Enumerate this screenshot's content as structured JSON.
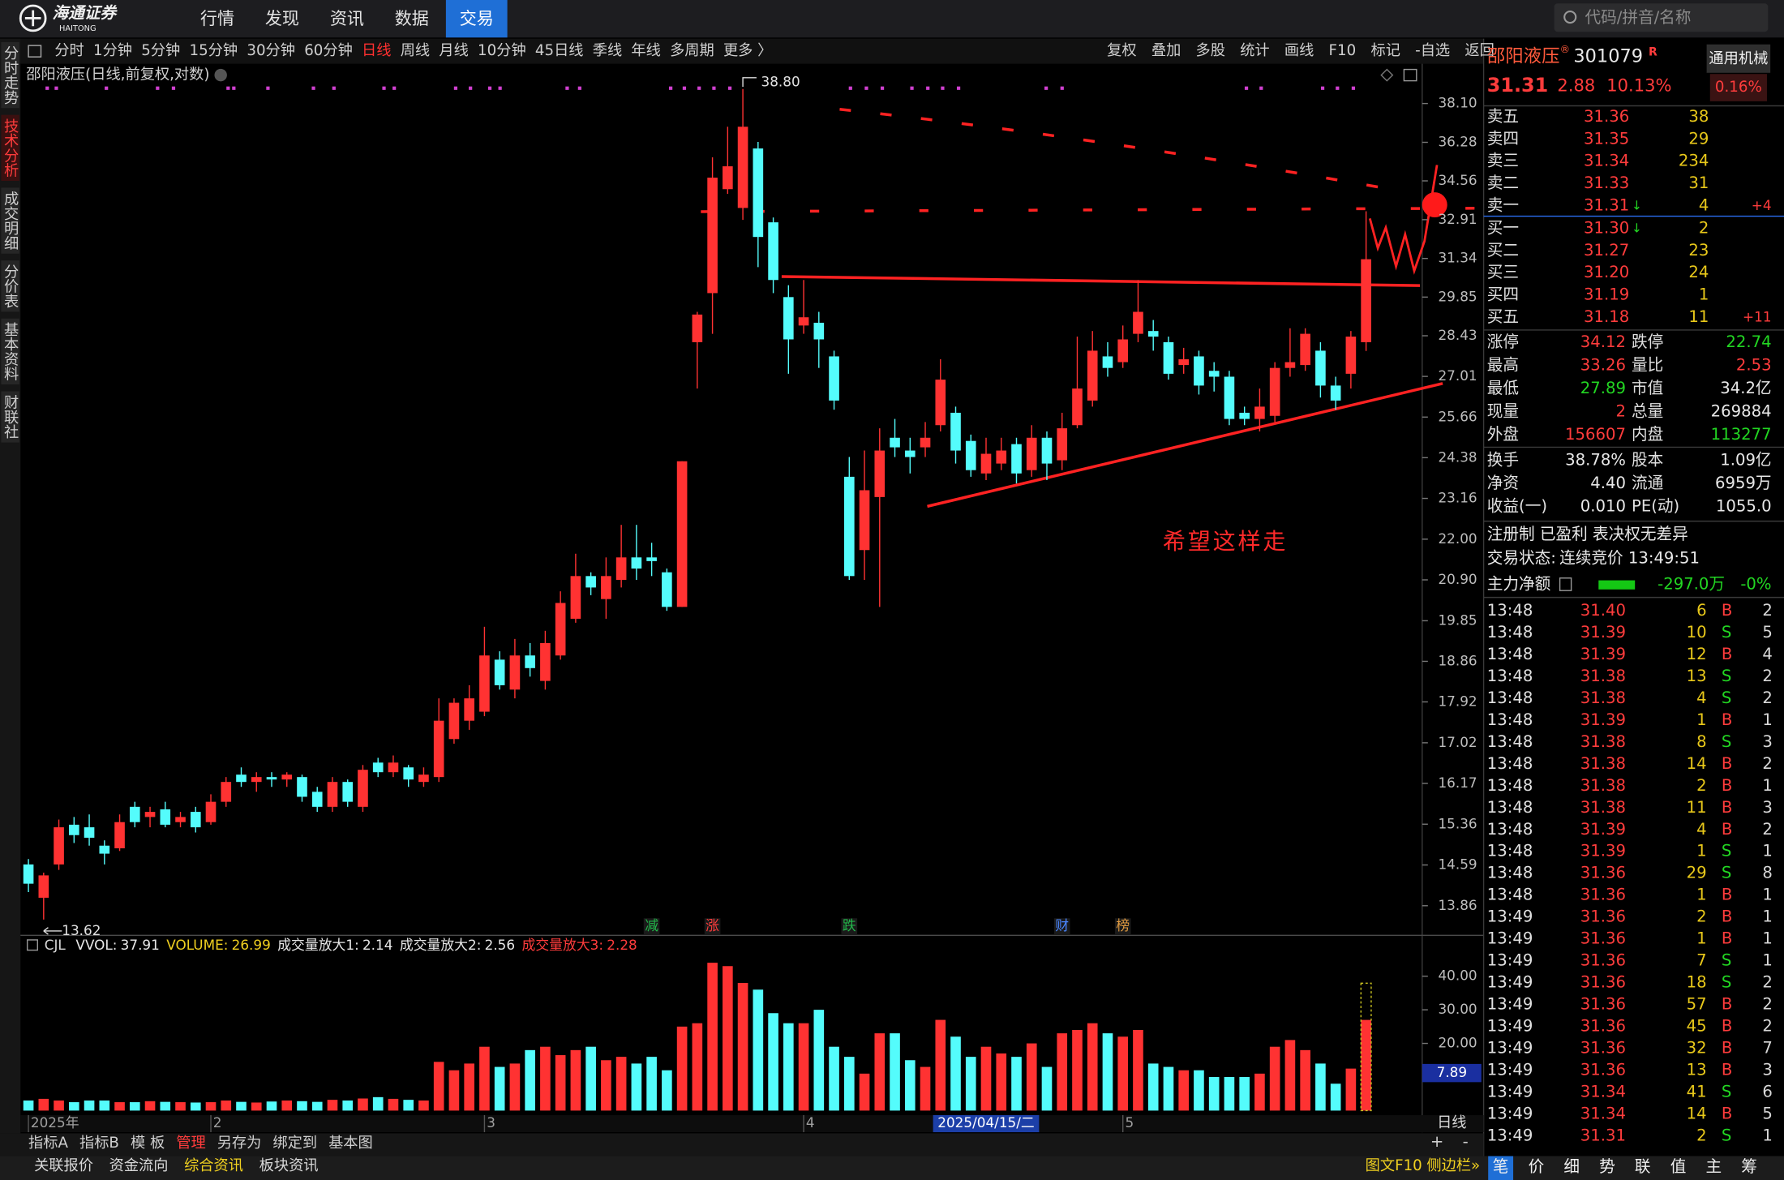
{
  "menu": {
    "logo": "海通证券",
    "logo_en": "HAITONG",
    "items": [
      "行情",
      "发现",
      "资讯",
      "数据",
      "交易"
    ],
    "active": 4,
    "search": "代码/拼音/名称"
  },
  "side_tabs": {
    "items": [
      "分时走势",
      "技术分析",
      "成交明细",
      "分价表",
      "基本资料",
      "财联社"
    ],
    "active": 1
  },
  "periods": {
    "items": [
      "分时",
      "1分钟",
      "5分钟",
      "15分钟",
      "30分钟",
      "60分钟",
      "日线",
      "周线",
      "月线",
      "10分钟",
      "45日线",
      "季线",
      "年线",
      "多周期",
      "更多 〉"
    ],
    "active": 6
  },
  "tools": [
    "复权",
    "叠加",
    "多股",
    "统计",
    "画线",
    "F10",
    "标记",
    "-自选",
    "返回"
  ],
  "chart_data": [
    {
      "type": "candlestick",
      "title": "邵阳液压(日线,前复权,对数)",
      "log_scale": true,
      "up_color": "#ff3232",
      "down_color": "#54fcfc",
      "ylim": [
        13.39,
        39.15
      ],
      "yticks": [
        {
          "value": 38.1,
          "label": "38.10"
        },
        36.28,
        34.56,
        32.91,
        31.34,
        29.85,
        28.43,
        27.01,
        25.66,
        24.38,
        23.16,
        {
          "value": 22,
          "label": "22.00"
        },
        {
          "value": 20.9,
          "label": "20.90"
        },
        19.85,
        18.86,
        17.92,
        17.02,
        16.17,
        15.36,
        14.59,
        13.86
      ],
      "categories": [
        "2025年",
        null,
        null,
        null,
        null,
        null,
        null,
        null,
        null,
        null,
        null,
        null,
        "2",
        null,
        null,
        null,
        null,
        null,
        null,
        null,
        null,
        null,
        null,
        null,
        null,
        null,
        null,
        null,
        null,
        null,
        "3",
        null,
        null,
        null,
        null,
        null,
        null,
        null,
        null,
        null,
        null,
        null,
        null,
        null,
        null,
        null,
        null,
        null,
        null,
        null,
        null,
        "4",
        null,
        null,
        null,
        null,
        null,
        null,
        null,
        null,
        null,
        null,
        null,
        null,
        null,
        null,
        null,
        null,
        null,
        null,
        null,
        null,
        "5",
        null,
        null,
        null,
        null,
        null,
        null,
        null,
        null,
        null,
        null,
        null,
        null,
        null,
        null,
        null,
        null
      ],
      "open": [
        14.6,
        14.0,
        14.6,
        15.35,
        15.3,
        14.95,
        14.9,
        15.7,
        15.5,
        15.65,
        15.4,
        15.6,
        15.4,
        15.8,
        16.35,
        16.2,
        16.3,
        16.25,
        16.3,
        16.0,
        15.7,
        16.2,
        15.7,
        16.6,
        16.4,
        16.5,
        16.2,
        16.3,
        17.1,
        17.5,
        17.7,
        18.9,
        18.2,
        19.0,
        18.4,
        19.0,
        19.9,
        21.0,
        20.4,
        20.9,
        21.5,
        21.5,
        21.1,
        20.2,
        28.2,
        30.0,
        34.2,
        33.4,
        36.0,
        32.8,
        29.85,
        28.8,
        28.9,
        27.7,
        23.8,
        21.7,
        23.2,
        25.0,
        24.6,
        24.7,
        25.4,
        25.8,
        24.9,
        23.9,
        24.2,
        24.8,
        24.0,
        25.0,
        24.3,
        25.4,
        26.2,
        27.7,
        27.5,
        28.5,
        28.6,
        28.2,
        27.4,
        27.7,
        27.2,
        27.0,
        25.8,
        25.6,
        25.7,
        27.3,
        27.4,
        27.9,
        26.7,
        27.1,
        28.2
      ],
      "high": [
        14.7,
        14.45,
        15.45,
        15.5,
        15.55,
        15.05,
        15.55,
        15.8,
        15.7,
        15.8,
        15.6,
        15.7,
        15.95,
        16.3,
        16.5,
        16.4,
        16.4,
        16.4,
        16.35,
        16.1,
        16.3,
        16.25,
        16.55,
        16.7,
        16.75,
        16.55,
        16.5,
        18.0,
        18.0,
        18.3,
        19.7,
        19.1,
        19.4,
        19.3,
        19.6,
        20.6,
        21.6,
        21.1,
        21.5,
        22.4,
        22.4,
        21.9,
        21.2,
        24.27,
        29.3,
        35.6,
        37.0,
        38.8,
        36.3,
        33.0,
        30.3,
        30.5,
        29.3,
        27.9,
        24.4,
        24.6,
        25.3,
        25.6,
        25.0,
        25.5,
        27.6,
        26.0,
        25.1,
        25.0,
        25.0,
        25.0,
        25.4,
        25.2,
        25.8,
        28.4,
        28.6,
        28.2,
        28.8,
        30.5,
        29.0,
        28.4,
        28.0,
        27.9,
        27.5,
        27.2,
        26.0,
        26.6,
        27.5,
        28.7,
        28.7,
        28.2,
        27.0,
        28.6,
        33.26
      ],
      "low": [
        14.1,
        13.62,
        14.5,
        15.0,
        14.95,
        14.6,
        14.85,
        15.3,
        15.3,
        15.3,
        15.3,
        15.2,
        15.35,
        15.7,
        16.1,
        16.0,
        16.1,
        16.1,
        15.8,
        15.6,
        15.6,
        15.7,
        15.6,
        16.3,
        16.3,
        16.1,
        16.1,
        16.2,
        17.0,
        17.3,
        17.6,
        18.2,
        18.0,
        18.5,
        18.2,
        18.9,
        19.8,
        20.5,
        19.9,
        20.7,
        20.9,
        21.0,
        20.1,
        20.2,
        26.6,
        28.5,
        34.0,
        32.9,
        31.0,
        30.0,
        27.1,
        28.5,
        27.3,
        25.9,
        20.9,
        20.9,
        20.2,
        24.4,
        23.9,
        24.4,
        25.2,
        24.2,
        23.8,
        23.7,
        24.0,
        23.6,
        23.8,
        23.7,
        24.0,
        25.3,
        26.0,
        27.0,
        27.3,
        28.2,
        27.9,
        26.9,
        27.1,
        26.4,
        26.5,
        25.4,
        25.4,
        25.2,
        25.5,
        27.0,
        27.2,
        26.3,
        25.9,
        26.6,
        27.89
      ],
      "close": [
        14.25,
        14.4,
        15.3,
        15.15,
        15.1,
        14.8,
        15.4,
        15.4,
        15.6,
        15.35,
        15.5,
        15.3,
        15.8,
        16.2,
        16.2,
        16.3,
        16.25,
        16.35,
        15.9,
        15.7,
        16.2,
        15.8,
        16.45,
        16.4,
        16.6,
        16.25,
        16.35,
        17.5,
        17.9,
        18.0,
        19.0,
        18.3,
        19.0,
        18.7,
        19.3,
        20.3,
        21.0,
        20.7,
        21.0,
        21.5,
        21.2,
        21.4,
        20.2,
        24.27,
        29.2,
        34.7,
        35.2,
        37.0,
        32.2,
        30.5,
        28.3,
        29.1,
        28.3,
        26.2,
        21.0,
        23.4,
        24.6,
        24.7,
        24.4,
        25.0,
        26.9,
        24.6,
        24.0,
        24.5,
        24.6,
        23.9,
        25.0,
        24.2,
        25.3,
        26.6,
        27.9,
        27.3,
        28.3,
        29.3,
        28.4,
        27.1,
        27.6,
        26.7,
        27.0,
        25.6,
        25.6,
        26.0,
        27.3,
        27.5,
        28.5,
        26.7,
        26.2,
        28.4,
        31.31
      ],
      "annotations": [
        {
          "index": 47,
          "field": "high",
          "label": "38.80"
        },
        {
          "index": 1,
          "field": "low",
          "label": "13.62"
        }
      ],
      "signals": [
        {
          "index": 41,
          "label": "减",
          "color": "#22b84a"
        },
        {
          "index": 45,
          "label": "涨",
          "color": "#ff3c3c"
        },
        {
          "index": 54,
          "label": "跌",
          "color": "#22b84a"
        },
        {
          "index": 68,
          "label": "财",
          "color": "#4a86ff"
        },
        {
          "index": 72,
          "label": "榜",
          "color": "#e09a40"
        }
      ],
      "cursor": {
        "index": 63,
        "label": "2025/04/15/二"
      },
      "period_label": "日线",
      "note": "希望这样走"
    },
    {
      "type": "bar",
      "ylim": [
        0,
        50.8
      ],
      "yticks": [
        {
          "value": 40,
          "label": "40.00"
        },
        {
          "value": 30,
          "label": "30.00"
        },
        {
          "value": 20,
          "label": "20.00"
        }
      ],
      "values": [
        3,
        3.5,
        3,
        2.5,
        3,
        3,
        2.5,
        2.5,
        2.8,
        2.6,
        2.5,
        2.4,
        2.5,
        3,
        2.6,
        2.4,
        2.7,
        3,
        2.8,
        2.6,
        3.2,
        3,
        3.6,
        4,
        3.5,
        3.2,
        3,
        14.5,
        12,
        14,
        19,
        13,
        14,
        18,
        19,
        16.5,
        18,
        19,
        15,
        16,
        14,
        16,
        12,
        25,
        26,
        44,
        43,
        38,
        36,
        29,
        26,
        26,
        30,
        19,
        16,
        11,
        23,
        23,
        15,
        13,
        27,
        22,
        16,
        19,
        17,
        16,
        20,
        13,
        23,
        24,
        26,
        23,
        22,
        24,
        14,
        13,
        12,
        12,
        10,
        10,
        10,
        11,
        19,
        21,
        18,
        14,
        8,
        12.5,
        26.99
      ],
      "indicators": [
        {
          "name": "CJL",
          "color": "#d8d8d8"
        },
        {
          "name": "VVOL:",
          "value": 37.91,
          "color": "#e8e8e8"
        },
        {
          "name": "VOLUME:",
          "value": 26.99,
          "color": "#f0d020"
        },
        {
          "name": "成交量放大1:",
          "value": 2.14,
          "color": "#e8e8e8"
        },
        {
          "name": "成交量放大2:",
          "value": 2.56,
          "color": "#e8e8e8"
        },
        {
          "name": "成交量放大3:",
          "value": 2.28,
          "color": "#ff3c3c"
        }
      ],
      "readout": "7.89"
    }
  ],
  "quote": {
    "name": "邵阳液压",
    "reg": "®",
    "code": "301079",
    "flag": "R",
    "industry": "通用机械",
    "price": "31.31",
    "change": "2.88",
    "pct": "10.13%",
    "ratio": "0.16%",
    "asks": [
      {
        "label": "卖五",
        "price": "31.36",
        "vol": "38"
      },
      {
        "label": "卖四",
        "price": "31.35",
        "vol": "29"
      },
      {
        "label": "卖三",
        "price": "31.34",
        "vol": "234"
      },
      {
        "label": "卖二",
        "price": "31.33",
        "vol": "31"
      },
      {
        "label": "卖一",
        "price": "31.31",
        "arrow": "↓",
        "vol": "4",
        "delta": "+4"
      }
    ],
    "bids": [
      {
        "label": "买一",
        "price": "31.30",
        "arrow": "↓",
        "vol": "2"
      },
      {
        "label": "买二",
        "price": "31.27",
        "vol": "23"
      },
      {
        "label": "买三",
        "price": "31.20",
        "vol": "24"
      },
      {
        "label": "买四",
        "price": "31.19",
        "vol": "1"
      },
      {
        "label": "买五",
        "price": "31.18",
        "vol": "11",
        "delta": "+11"
      }
    ],
    "stats": [
      [
        {
          "label": "涨停",
          "value": "34.12",
          "tone": "up"
        },
        {
          "label": "跌停",
          "value": "22.74",
          "tone": "down"
        }
      ],
      [
        {
          "label": "最高",
          "value": "33.26",
          "tone": "up"
        },
        {
          "label": "量比",
          "value": "2.53",
          "tone": "up"
        }
      ],
      [
        {
          "label": "最低",
          "value": "27.89",
          "tone": "down"
        },
        {
          "label": "市值",
          "value": "34.2亿"
        }
      ],
      [
        {
          "label": "现量",
          "value": "2",
          "tone": "up"
        },
        {
          "label": "总量",
          "value": "269884"
        }
      ],
      [
        {
          "label": "外盘",
          "value": "156607",
          "tone": "up"
        },
        {
          "label": "内盘",
          "value": "113277",
          "tone": "down"
        }
      ]
    ],
    "stats2": [
      [
        {
          "label": "换手",
          "value": "38.78%"
        },
        {
          "label": "股本",
          "value": "1.09亿"
        }
      ],
      [
        {
          "label": "净资",
          "value": "4.40"
        },
        {
          "label": "流通",
          "value": "6959万"
        }
      ],
      [
        {
          "label": "收益(一)",
          "value": "0.010"
        },
        {
          "label": "PE(动)",
          "value": "1055.0"
        }
      ]
    ],
    "tags": "注册制 已盈利 表决权无差异",
    "status": {
      "label": "交易状态:",
      "value": "连续竞价 13:49:51"
    },
    "main_flow": {
      "label": "主力净额",
      "value": "-297.0万",
      "pct": "-0%"
    },
    "trades": [
      [
        "13:48",
        "31.40",
        "6",
        "B",
        "2"
      ],
      [
        "13:48",
        "31.39",
        "10",
        "S",
        "5"
      ],
      [
        "13:48",
        "31.39",
        "12",
        "B",
        "4"
      ],
      [
        "13:48",
        "31.38",
        "13",
        "S",
        "2"
      ],
      [
        "13:48",
        "31.38",
        "4",
        "S",
        "2"
      ],
      [
        "13:48",
        "31.39",
        "1",
        "B",
        "1"
      ],
      [
        "13:48",
        "31.38",
        "8",
        "S",
        "3"
      ],
      [
        "13:48",
        "31.38",
        "14",
        "B",
        "2"
      ],
      [
        "13:48",
        "31.38",
        "2",
        "B",
        "1"
      ],
      [
        "13:48",
        "31.38",
        "11",
        "B",
        "3"
      ],
      [
        "13:48",
        "31.39",
        "4",
        "B",
        "2"
      ],
      [
        "13:48",
        "31.39",
        "1",
        "S",
        "1"
      ],
      [
        "13:48",
        "31.36",
        "29",
        "S",
        "8"
      ],
      [
        "13:48",
        "31.36",
        "1",
        "B",
        "1"
      ],
      [
        "13:49",
        "31.36",
        "2",
        "B",
        "1"
      ],
      [
        "13:49",
        "31.36",
        "1",
        "B",
        "1"
      ],
      [
        "13:49",
        "31.36",
        "7",
        "S",
        "1"
      ],
      [
        "13:49",
        "31.36",
        "18",
        "S",
        "2"
      ],
      [
        "13:49",
        "31.36",
        "57",
        "B",
        "2"
      ],
      [
        "13:49",
        "31.36",
        "45",
        "B",
        "2"
      ],
      [
        "13:49",
        "31.36",
        "32",
        "B",
        "7"
      ],
      [
        "13:49",
        "31.36",
        "13",
        "B",
        "3"
      ],
      [
        "13:49",
        "31.34",
        "41",
        "S",
        "6"
      ],
      [
        "13:49",
        "31.34",
        "14",
        "B",
        "5"
      ],
      [
        "13:49",
        "31.31",
        "2",
        "S",
        "1"
      ]
    ]
  },
  "bottom_tabs": {
    "items": [
      "指标A",
      "指标B",
      "模 板",
      "管理",
      "另存为",
      "绑定到",
      "基本图"
    ],
    "active": 3,
    "zoom": [
      "+",
      "-"
    ]
  },
  "status_bar": {
    "left": [
      "关联报价",
      "资金流向",
      "综合资讯",
      "板块资讯"
    ],
    "highlight": 2,
    "right": [
      "图文F10",
      "侧边栏»"
    ],
    "tabs": [
      "笔",
      "价",
      "细",
      "势",
      "联",
      "值",
      "主",
      "筹"
    ],
    "active": 0
  }
}
